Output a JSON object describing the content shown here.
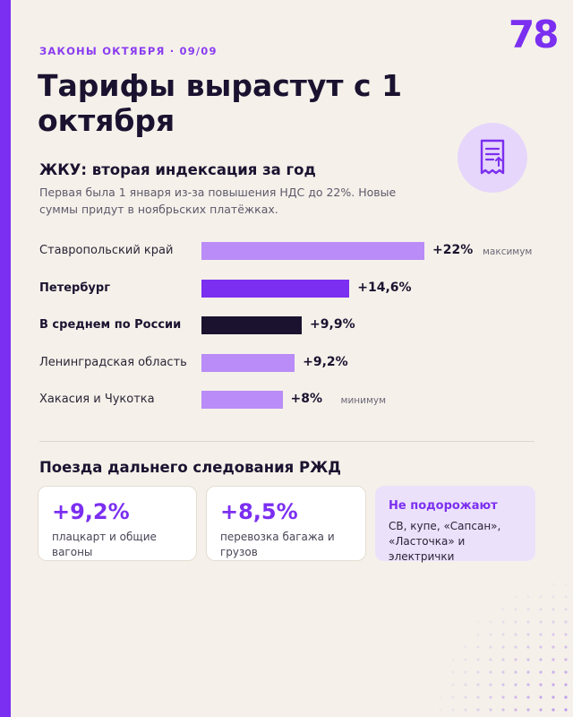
{
  "kicker": "ЗАКОНЫ ОКТЯБРЯ · 09/09",
  "logo": "78",
  "title": "Тарифы вырастут с 1 октября",
  "icon": "receipt-icon",
  "colors": {
    "accent": "#7b2ff0",
    "light_bar": "#b98cf7",
    "dark_bar": "#1b1230",
    "card_bg": "#ece1fb"
  },
  "chart_data": {
    "type": "bar",
    "orientation": "horizontal",
    "title": "ЖКУ: вторая индексация за год",
    "subtitle": "Первая была 1 января из-за повышения НДС до 22%. Новые суммы придут в ноябрьских платёжках.",
    "categories": [
      "Ставропольский край",
      "Петербург",
      "В среднем по России",
      "Ленинградская область",
      "Хакасия и Чукотка"
    ],
    "values": [
      22,
      14.6,
      9.9,
      9.2,
      8
    ],
    "value_labels": [
      "+22%",
      "+14,6%",
      "+9,9%",
      "+9,2%",
      "+8%"
    ],
    "notes": [
      "максимум",
      "",
      "",
      "",
      "минимум"
    ],
    "highlight": [
      "normal",
      "accent",
      "dark",
      "normal",
      "normal"
    ],
    "unit": "%"
  },
  "trains": {
    "title": "Поезда дальнего следования РЖД",
    "cards": [
      {
        "value": "+9,2%",
        "text": "плацкарт и общие вагоны"
      },
      {
        "value": "+8,5%",
        "text": "перевозка багажа и грузов"
      }
    ],
    "no_change": {
      "title": "Не подорожают",
      "text": "СВ, купе, «Сапсан», «Ласточка» и электрички"
    }
  }
}
